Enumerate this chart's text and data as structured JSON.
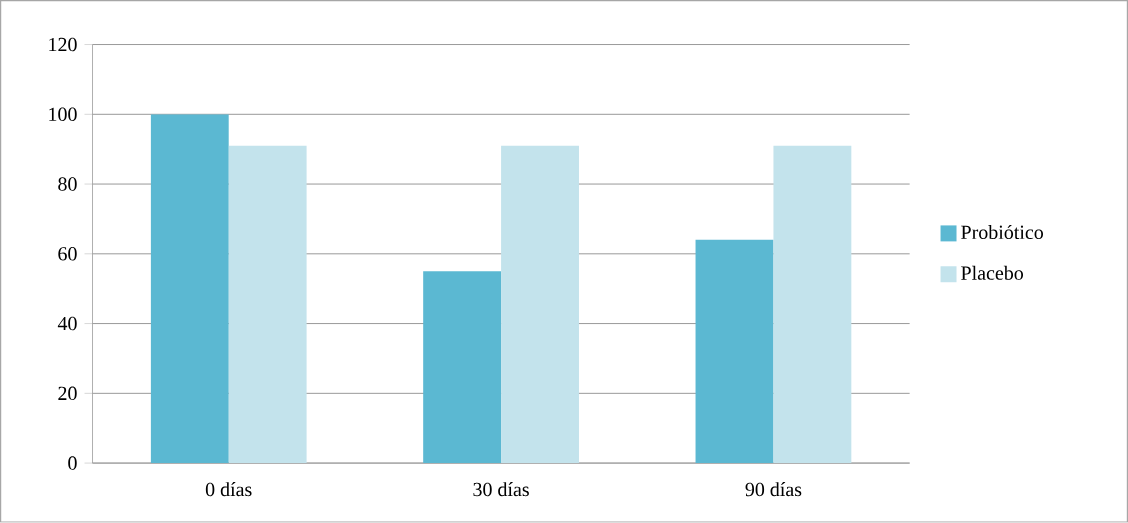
{
  "chart_data": {
    "type": "bar",
    "categories": [
      "0 días",
      "30 días",
      "90 días"
    ],
    "series": [
      {
        "name": "Probiótico",
        "color": "#5bb8d2",
        "values": [
          100,
          55,
          64
        ]
      },
      {
        "name": "Placebo",
        "color": "#c3e3ec",
        "values": [
          91,
          91,
          91
        ]
      }
    ],
    "ylim": [
      0,
      120
    ],
    "yticks": [
      0,
      20,
      40,
      60,
      80,
      100,
      120
    ],
    "grid": "y",
    "legend": "right"
  }
}
